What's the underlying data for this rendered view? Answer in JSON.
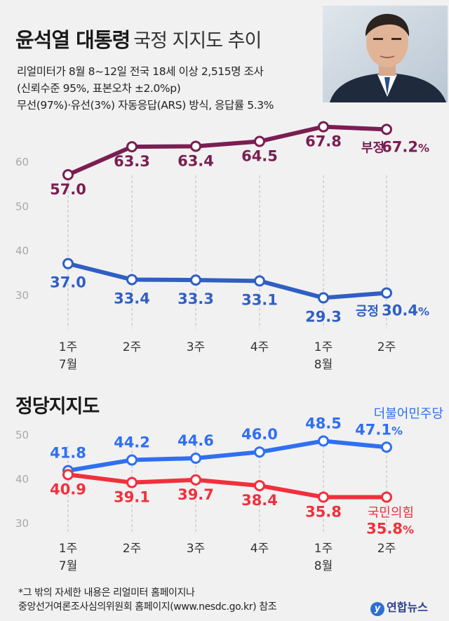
{
  "header": {
    "title_bold": "윤석열 대통령",
    "title_light": "국정 지지도 추이",
    "info_lines": [
      "리얼미터가 8월 8~12일 전국 18세 이상 2,515명 조사",
      "(신뢰수준 95%, 표본오차 ±2.0%p)",
      "무선(97%)·유선(3%) 자동응답(ARS) 방식, 응답률 5.3%"
    ]
  },
  "section2_title": "정당지지도",
  "footnote": [
    "*그 밖의 자세한 내용은 리얼미터 홈페이지나",
    "중앙선거여론조사심의위원회 홈페이지(www.nesdc.go.kr) 참조"
  ],
  "logo": {
    "mark": "y",
    "text": "연합뉴스"
  },
  "colors": {
    "negative": "#7a1e52",
    "positive": "#2f5fc4",
    "democratic": "#2f6ff2",
    "ppp": "#f0303c"
  },
  "chart_data": [
    {
      "type": "line",
      "categories": [
        [
          "1주",
          "7월"
        ],
        [
          "2주",
          ""
        ],
        [
          "3주",
          ""
        ],
        [
          "4주",
          ""
        ],
        [
          "1주",
          "8월"
        ],
        [
          "2주",
          ""
        ]
      ],
      "ylim": [
        27,
        70
      ],
      "yticks": [
        30,
        40,
        50,
        60
      ],
      "grid": false,
      "series": [
        {
          "name": "부정",
          "values": [
            57.0,
            63.3,
            63.4,
            64.5,
            67.8,
            67.2
          ],
          "labels": [
            "57.0",
            "63.3",
            "63.4",
            "64.5",
            "67.8",
            "67.2"
          ],
          "color": "#7a1e52"
        },
        {
          "name": "긍정",
          "values": [
            37.0,
            33.4,
            33.3,
            33.1,
            29.3,
            30.4
          ],
          "labels": [
            "37.0",
            "33.4",
            "33.3",
            "33.1",
            "29.3",
            "30.4"
          ],
          "color": "#2f5fc4"
        }
      ],
      "percent_sign": "%"
    },
    {
      "type": "line",
      "categories": [
        [
          "1주",
          "7월"
        ],
        [
          "2주",
          ""
        ],
        [
          "3주",
          ""
        ],
        [
          "4주",
          ""
        ],
        [
          "1주",
          "8월"
        ],
        [
          "2주",
          ""
        ]
      ],
      "ylim": [
        28,
        55
      ],
      "yticks": [
        30,
        40,
        50
      ],
      "grid": false,
      "series": [
        {
          "name": "더불어민주당",
          "values": [
            41.8,
            44.2,
            44.6,
            46.0,
            48.5,
            47.1
          ],
          "labels": [
            "41.8",
            "44.2",
            "44.6",
            "46.0",
            "48.5",
            "47.1"
          ],
          "color": "#2f6ff2"
        },
        {
          "name": "국민의힘",
          "values": [
            40.9,
            39.1,
            39.7,
            38.4,
            35.8,
            35.8
          ],
          "labels": [
            "40.9",
            "39.1",
            "39.7",
            "38.4",
            "35.8",
            "35.8"
          ],
          "color": "#f0303c"
        }
      ],
      "percent_sign": "%"
    }
  ]
}
